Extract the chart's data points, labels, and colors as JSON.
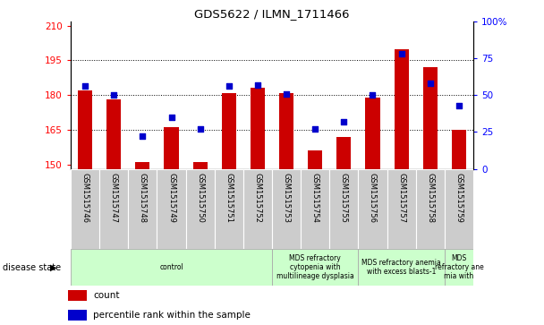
{
  "title": "GDS5622 / ILMN_1711466",
  "samples": [
    "GSM1515746",
    "GSM1515747",
    "GSM1515748",
    "GSM1515749",
    "GSM1515750",
    "GSM1515751",
    "GSM1515752",
    "GSM1515753",
    "GSM1515754",
    "GSM1515755",
    "GSM1515756",
    "GSM1515757",
    "GSM1515758",
    "GSM1515759"
  ],
  "bar_values": [
    182,
    178,
    151,
    166,
    151,
    181,
    183,
    181,
    156,
    162,
    179,
    200,
    192,
    165
  ],
  "dot_values_pct": [
    56,
    50,
    22,
    35,
    27,
    56,
    57,
    51,
    27,
    32,
    50,
    78,
    58,
    43
  ],
  "bar_color": "#cc0000",
  "dot_color": "#0000cc",
  "ylim_left": [
    148,
    212
  ],
  "ylim_right": [
    0,
    100
  ],
  "yticks_left": [
    150,
    165,
    180,
    195,
    210
  ],
  "yticks_right": [
    0,
    25,
    50,
    75,
    100
  ],
  "grid_values": [
    165,
    180,
    195
  ],
  "disease_groups": [
    {
      "label": "control",
      "start": 0,
      "end": 7
    },
    {
      "label": "MDS refractory\ncytopenia with\nmultilineage dysplasia",
      "start": 7,
      "end": 10
    },
    {
      "label": "MDS refractory anemia\nwith excess blasts-1",
      "start": 10,
      "end": 13
    },
    {
      "label": "MDS\nrefractory ane\nmia with",
      "start": 13,
      "end": 14
    }
  ],
  "disease_state_label": "disease state",
  "legend_bar_label": "count",
  "legend_dot_label": "percentile rank within the sample",
  "bar_width": 0.5,
  "figure_bg": "#ffffff",
  "axes_bg": "#ffffff",
  "label_bg": "#cccccc",
  "group_bg": "#ccffcc",
  "group_divider_color": "#aaaaaa"
}
